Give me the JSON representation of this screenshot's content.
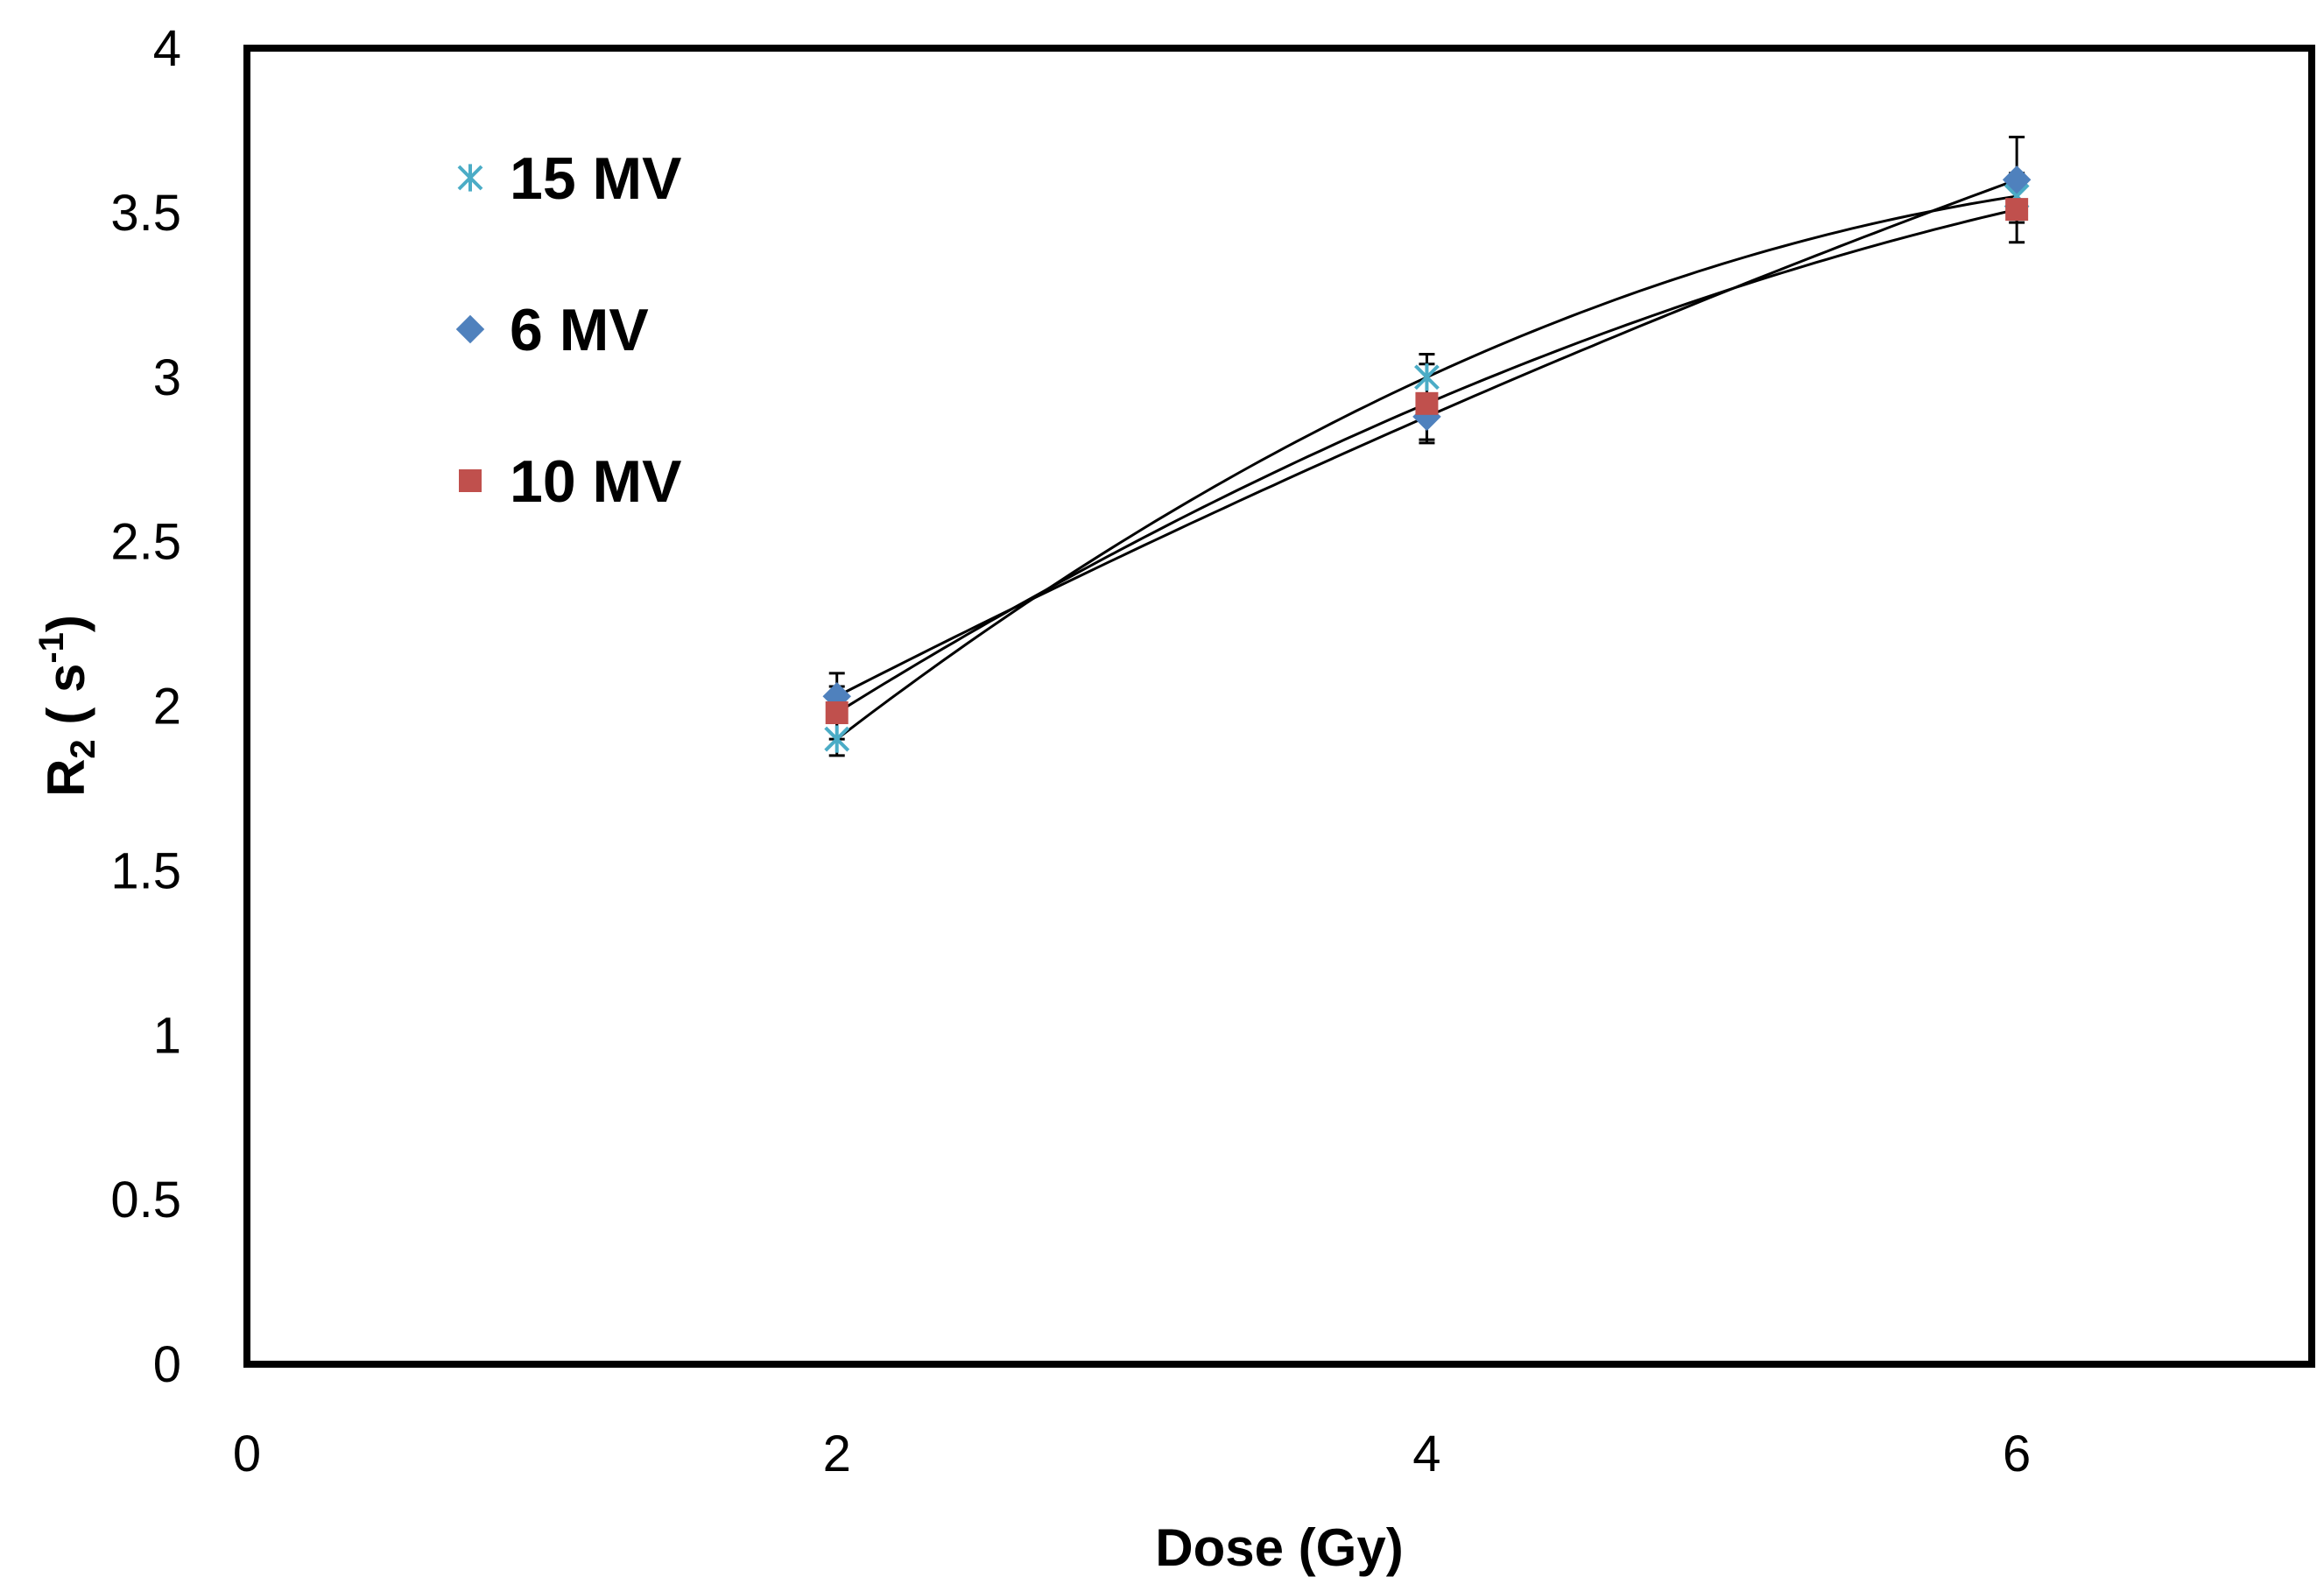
{
  "chart_data": {
    "type": "scatter",
    "title": "",
    "xlabel": "Dose (Gy)",
    "ylabel": {
      "base": "R",
      "base_sub": "2",
      "unit_open": " ( s",
      "unit_sup": "-1",
      "unit_close": ")"
    },
    "xlim": [
      0,
      7
    ],
    "ylim": [
      0,
      4
    ],
    "xticks": [
      "0",
      "2",
      "4",
      "6"
    ],
    "xtick_values": [
      0,
      2,
      4,
      6
    ],
    "yticks": [
      "0",
      "0.5",
      "1",
      "1.5",
      "2",
      "2.5",
      "3",
      "3.5",
      "4"
    ],
    "ytick_values": [
      0,
      0.5,
      1,
      1.5,
      2,
      2.5,
      3,
      3.5,
      4
    ],
    "grid": false,
    "legend_position": "top-left",
    "trendline": "polynomial order 2 through each series",
    "series": [
      {
        "name": "15 MV",
        "marker": "star-x",
        "color": "#4bacc6",
        "x": [
          2,
          4,
          6
        ],
        "y": [
          1.9,
          3.0,
          3.55
        ],
        "error": [
          0.05,
          0.07,
          0.07
        ]
      },
      {
        "name": "6 MV",
        "marker": "diamond",
        "color": "#4f81bd",
        "x": [
          2,
          4,
          6
        ],
        "y": [
          2.03,
          2.88,
          3.6
        ],
        "error": [
          0.07,
          0.07,
          0.13
        ]
      },
      {
        "name": "10 MV",
        "marker": "square",
        "color": "#c0504d",
        "x": [
          2,
          4,
          6
        ],
        "y": [
          1.98,
          2.92,
          3.51
        ],
        "error": [
          0.08,
          0.12,
          0.1
        ]
      }
    ]
  }
}
